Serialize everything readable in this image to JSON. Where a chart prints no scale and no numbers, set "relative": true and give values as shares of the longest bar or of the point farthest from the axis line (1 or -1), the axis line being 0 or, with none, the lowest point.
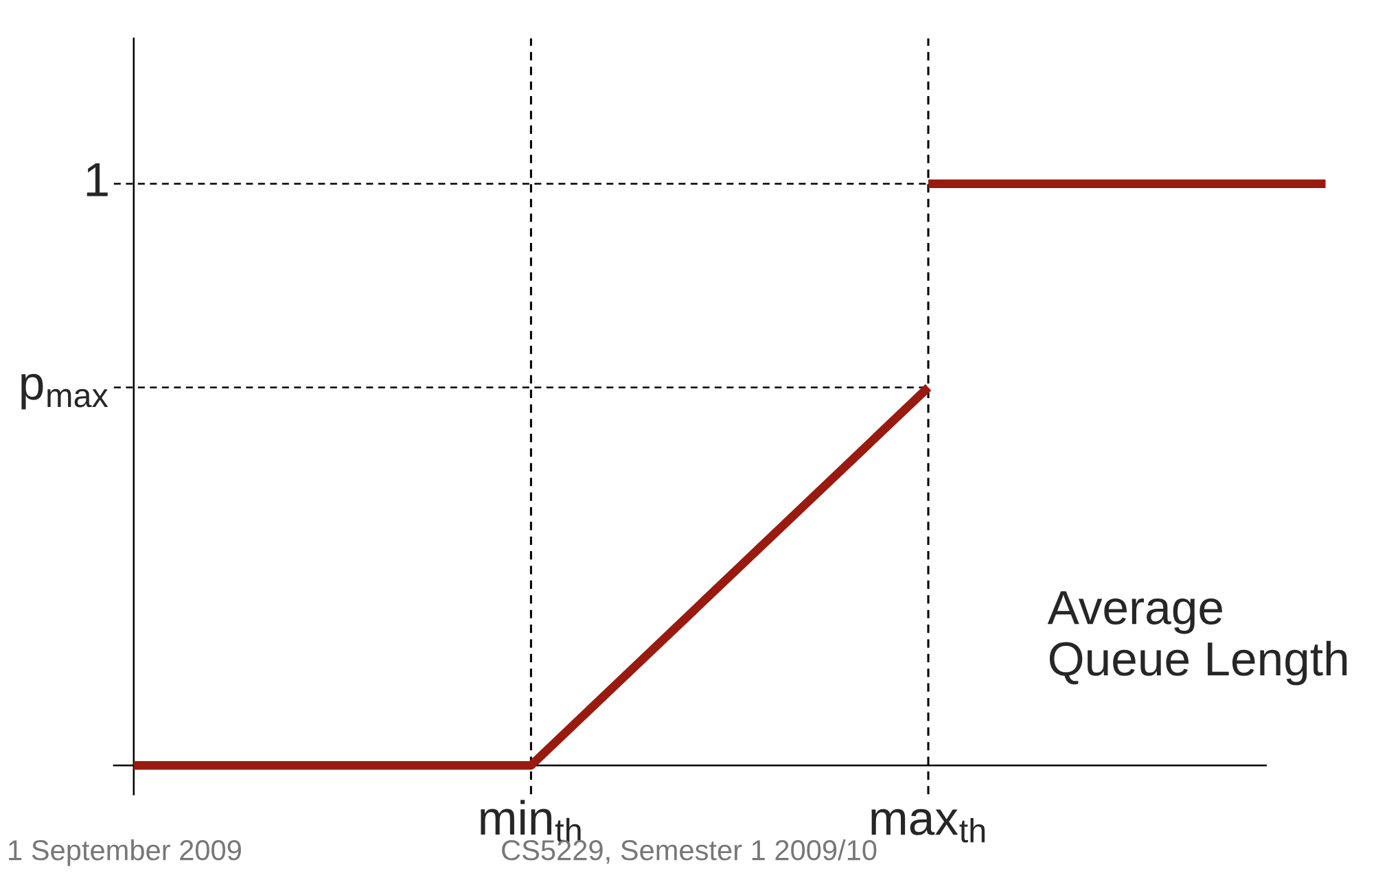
{
  "chart_data": {
    "type": "line",
    "relative": true,
    "xlabel": "Average\nQueue Length",
    "categories": [
      null,
      "min$_{th}$",
      "max$_{th}$",
      null
    ],
    "series": [
      {
        "color": "#991a0e",
        "values": [
          0,
          0,
          0.65,
          null
        ]
      },
      {
        "color": "#991a0e",
        "values": [
          null,
          null,
          1,
          1
        ]
      }
    ],
    "ref_lines": [
      {
        "axis": "y",
        "value": 1,
        "label": "1",
        "line_style": "dashed",
        "color": "#000000"
      },
      {
        "axis": "y",
        "value": 0.65,
        "label": "p$_{max}$",
        "line_style": "dashed",
        "color": "#000000"
      },
      {
        "axis": "x",
        "value": "min$_{th}$",
        "line_style": "dashed",
        "color": "#000000"
      },
      {
        "axis": "x",
        "value": "max$_{th}$",
        "line_style": "dashed",
        "color": "#000000"
      }
    ],
    "legend": false,
    "marker": "none",
    "line_style": "solid",
    "annotations": [
      "1 September 2009",
      "CS5229, Semester 1 2009/10"
    ]
  }
}
